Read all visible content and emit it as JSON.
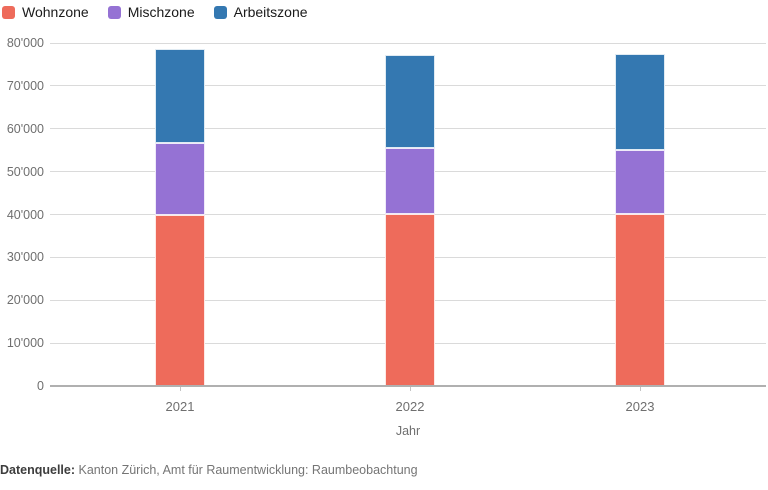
{
  "chart_data": {
    "type": "bar",
    "stacked": true,
    "title": "",
    "categories": [
      "2021",
      "2022",
      "2023"
    ],
    "series": [
      {
        "name": "Wohnzone",
        "color": "#ee6b5b",
        "values": [
          40000,
          40100,
          40100
        ]
      },
      {
        "name": "Mischzone",
        "color": "#9572d4",
        "values": [
          16700,
          15300,
          14900
        ]
      },
      {
        "name": "Arbeitszone",
        "color": "#3478b1",
        "values": [
          21800,
          21900,
          22400
        ]
      }
    ],
    "stack_totals": [
      78500,
      77300,
      77400
    ],
    "xlabel": "Jahr",
    "ylabel": "",
    "ylim": [
      0,
      80000
    ],
    "ytick_step": 10000,
    "ytick_labels": [
      "0",
      "10'000",
      "20'000",
      "30'000",
      "40'000",
      "50'000",
      "60'000",
      "70'000",
      "80'000"
    ],
    "grid": true,
    "legend_position": "top-left"
  },
  "footer": {
    "source_label": "Datenquelle:",
    "source_text": " Kanton Zürich, Amt für Raumentwicklung: Raumbeobachtung"
  },
  "colors": {
    "gridline": "#dadada",
    "axis_line": "#b0b0b0",
    "tick": "#c4c4c4",
    "axis_text": "#6f6f6f",
    "legend_text": "#1a1a1a",
    "background": "#ffffff"
  }
}
